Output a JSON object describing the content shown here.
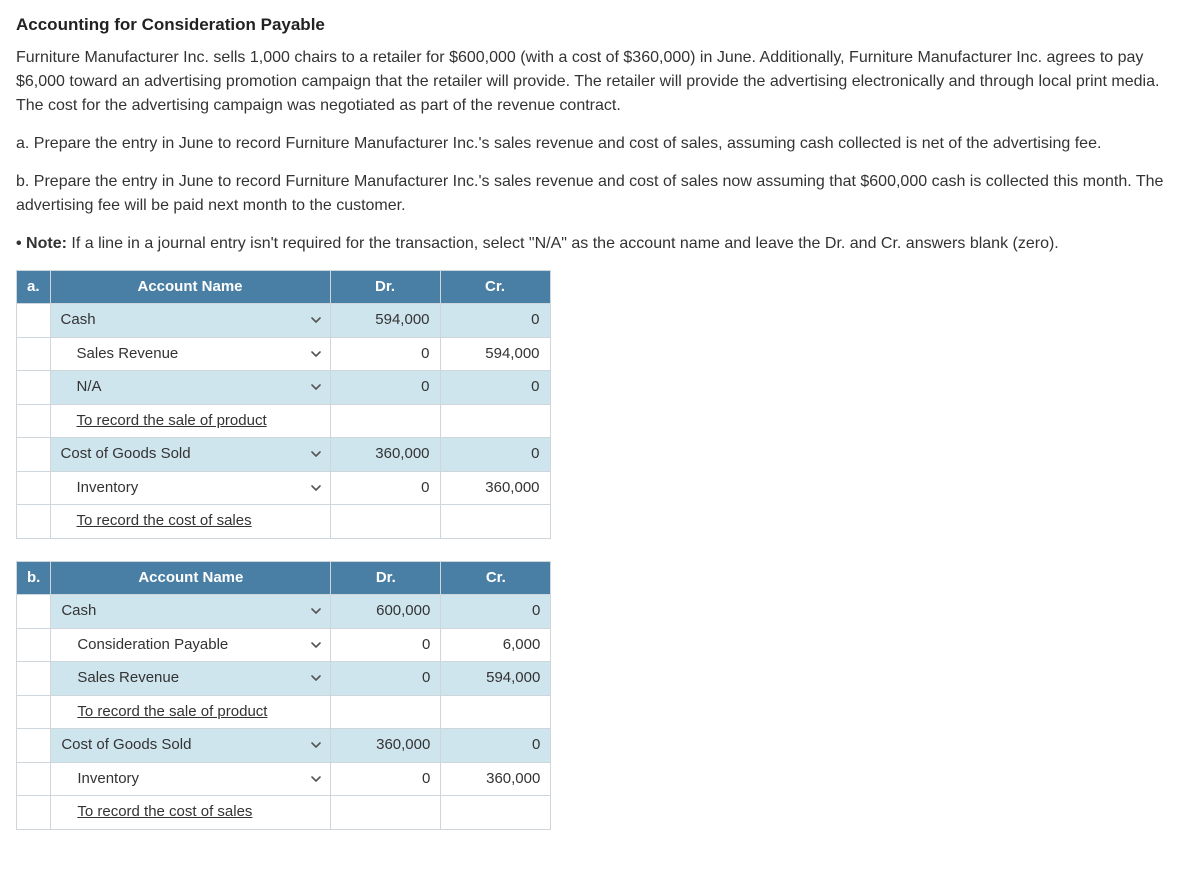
{
  "title": "Accounting for Consideration Payable",
  "paragraphs": {
    "p1": "Furniture Manufacturer Inc. sells 1,000 chairs to a retailer for $600,000 (with a cost of $360,000) in June. Additionally, Furniture Manufacturer Inc. agrees to pay $6,000 toward an advertising promotion campaign that the retailer will provide. The retailer will provide the advertising electronically and through local print media. The cost for the advertising campaign was negotiated as part of the revenue contract.",
    "p2": "a. Prepare the entry in June to record Furniture Manufacturer Inc.'s sales revenue and cost of sales, assuming cash collected is net of the advertising fee.",
    "p3": "b. Prepare the entry in June to record Furniture Manufacturer Inc.'s sales revenue and cost of sales now assuming that $600,000 cash is collected this month. The advertising fee will be paid next month to the customer.",
    "note_prefix": "• Note:",
    "note_body": " If a line in a journal entry isn't required for the transaction, select \"N/A\" as the account name and leave the Dr. and Cr. answers blank (zero)."
  },
  "columns": {
    "acct": "Account Name",
    "dr": "Dr.",
    "cr": "Cr."
  },
  "colors": {
    "header_bg": "#4a7fa5",
    "shade_bg": "#cfe5ee",
    "border": "#cfd6db",
    "text": "#333333"
  },
  "tables": [
    {
      "label": "a.",
      "rows": [
        {
          "type": "entry",
          "indent": 0,
          "account": "Cash",
          "dr": "594,000",
          "cr": "0",
          "shade": true,
          "select": true
        },
        {
          "type": "entry",
          "indent": 1,
          "account": "Sales Revenue",
          "dr": "0",
          "cr": "594,000",
          "shade": false,
          "select": true
        },
        {
          "type": "entry",
          "indent": 1,
          "account": "N/A",
          "dr": "0",
          "cr": "0",
          "shade": true,
          "select": true
        },
        {
          "type": "desc",
          "account": "To record the sale of product"
        },
        {
          "type": "entry",
          "indent": 0,
          "account": "Cost of Goods Sold",
          "dr": "360,000",
          "cr": "0",
          "shade": true,
          "select": true
        },
        {
          "type": "entry",
          "indent": 1,
          "account": "Inventory",
          "dr": "0",
          "cr": "360,000",
          "shade": false,
          "select": true
        },
        {
          "type": "desc",
          "account": "To record the cost of sales"
        }
      ]
    },
    {
      "label": "b.",
      "rows": [
        {
          "type": "entry",
          "indent": 0,
          "account": "Cash",
          "dr": "600,000",
          "cr": "0",
          "shade": true,
          "select": true
        },
        {
          "type": "entry",
          "indent": 1,
          "account": "Consideration Payable",
          "dr": "0",
          "cr": "6,000",
          "shade": false,
          "select": true
        },
        {
          "type": "entry",
          "indent": 1,
          "account": "Sales Revenue",
          "dr": "0",
          "cr": "594,000",
          "shade": true,
          "select": true
        },
        {
          "type": "desc",
          "account": "To record the sale of product"
        },
        {
          "type": "entry",
          "indent": 0,
          "account": "Cost of Goods Sold",
          "dr": "360,000",
          "cr": "0",
          "shade": true,
          "select": true
        },
        {
          "type": "entry",
          "indent": 1,
          "account": "Inventory",
          "dr": "0",
          "cr": "360,000",
          "shade": false,
          "select": true
        },
        {
          "type": "desc",
          "account": "To record the cost of sales"
        }
      ]
    }
  ]
}
